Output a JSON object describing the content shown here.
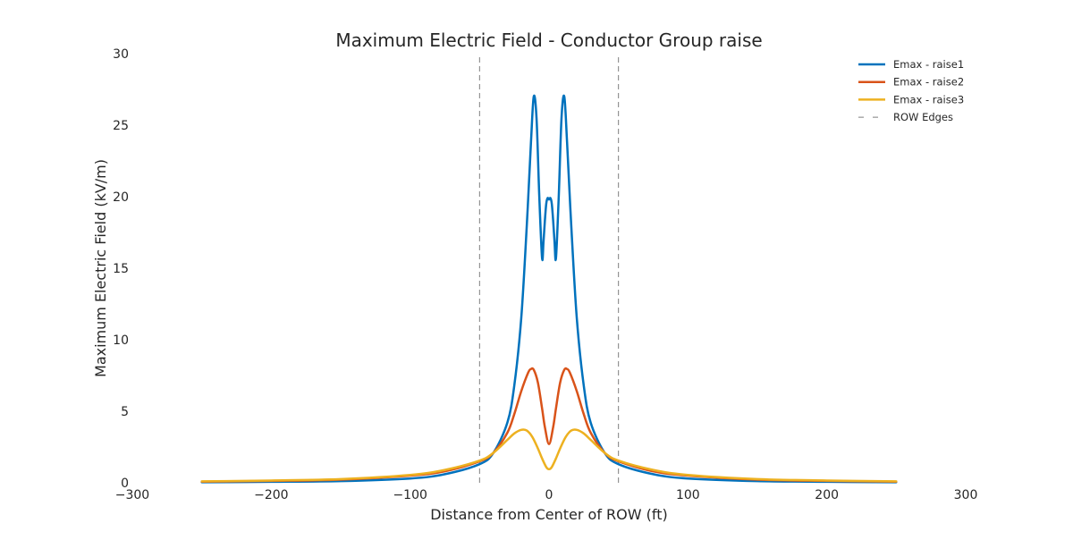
{
  "chart_data": {
    "type": "line",
    "title": "Maximum Electric Field - Conductor Group raise",
    "xlabel": "Distance from Center of ROW (ft)",
    "ylabel": "Maximum Electric Field (kV/m)",
    "xlim": [
      -300,
      300
    ],
    "ylim": [
      0,
      30
    ],
    "xticks": [
      -300,
      -200,
      -100,
      0,
      100,
      200,
      300
    ],
    "yticks": [
      0,
      5,
      10,
      15,
      20,
      25,
      30
    ],
    "xtick_labels": [
      "−300",
      "−200",
      "−100",
      "0",
      "100",
      "200",
      "300"
    ],
    "ytick_labels": [
      "0",
      "5",
      "10",
      "15",
      "20",
      "25",
      "30"
    ],
    "grid": false,
    "legend_position": "top-right",
    "row_edges": {
      "name": "ROW Edges",
      "x": [
        -50,
        50
      ],
      "color": "#7f7f7f",
      "dash": true
    },
    "series": [
      {
        "name": "Emax - raise1",
        "color": "#0072bd",
        "x": [
          -250,
          -200,
          -150,
          -100,
          -75,
          -50,
          -40,
          -30,
          -25,
          -20,
          -16,
          -13,
          -11,
          -9,
          -7,
          -5,
          -4,
          -3,
          -2,
          -1,
          0,
          1,
          2,
          3,
          4,
          5,
          7,
          9,
          11,
          13,
          16,
          20,
          25,
          30,
          40,
          50,
          75,
          100,
          150,
          200,
          250
        ],
        "y": [
          0.04,
          0.07,
          0.12,
          0.3,
          0.6,
          1.3,
          2.1,
          4.2,
          6.8,
          11.5,
          18.0,
          23.8,
          27.0,
          25.5,
          20.0,
          15.7,
          16.8,
          18.3,
          19.5,
          19.9,
          19.8,
          19.9,
          19.5,
          18.3,
          16.8,
          15.7,
          20.0,
          25.5,
          27.0,
          23.8,
          18.0,
          11.5,
          6.8,
          4.2,
          2.1,
          1.3,
          0.6,
          0.3,
          0.12,
          0.07,
          0.04
        ]
      },
      {
        "name": "Emax - raise2",
        "color": "#d95319",
        "x": [
          -250,
          -200,
          -150,
          -100,
          -75,
          -50,
          -40,
          -30,
          -25,
          -20,
          -15,
          -13,
          -11,
          -8,
          -5,
          -3,
          0,
          3,
          5,
          8,
          11,
          13,
          15,
          20,
          25,
          30,
          40,
          50,
          75,
          100,
          150,
          200,
          250
        ],
        "y": [
          0.08,
          0.13,
          0.22,
          0.5,
          0.8,
          1.5,
          2.1,
          3.5,
          4.8,
          6.4,
          7.7,
          7.95,
          7.9,
          7.0,
          5.2,
          3.9,
          2.7,
          3.9,
          5.2,
          7.0,
          7.9,
          7.95,
          7.7,
          6.4,
          4.8,
          3.5,
          2.1,
          1.5,
          0.8,
          0.5,
          0.22,
          0.13,
          0.08
        ]
      },
      {
        "name": "Emax - raise3",
        "color": "#edb120",
        "x": [
          -250,
          -200,
          -150,
          -100,
          -75,
          -50,
          -40,
          -30,
          -25,
          -20,
          -16,
          -12,
          -8,
          -5,
          -2,
          0,
          2,
          5,
          8,
          12,
          16,
          20,
          25,
          30,
          40,
          50,
          75,
          100,
          150,
          200,
          250
        ],
        "y": [
          0.1,
          0.16,
          0.26,
          0.55,
          0.9,
          1.55,
          2.1,
          3.0,
          3.45,
          3.7,
          3.65,
          3.2,
          2.4,
          1.7,
          1.1,
          0.95,
          1.1,
          1.7,
          2.4,
          3.2,
          3.65,
          3.7,
          3.45,
          3.0,
          2.1,
          1.55,
          0.9,
          0.55,
          0.26,
          0.16,
          0.1
        ]
      }
    ]
  }
}
